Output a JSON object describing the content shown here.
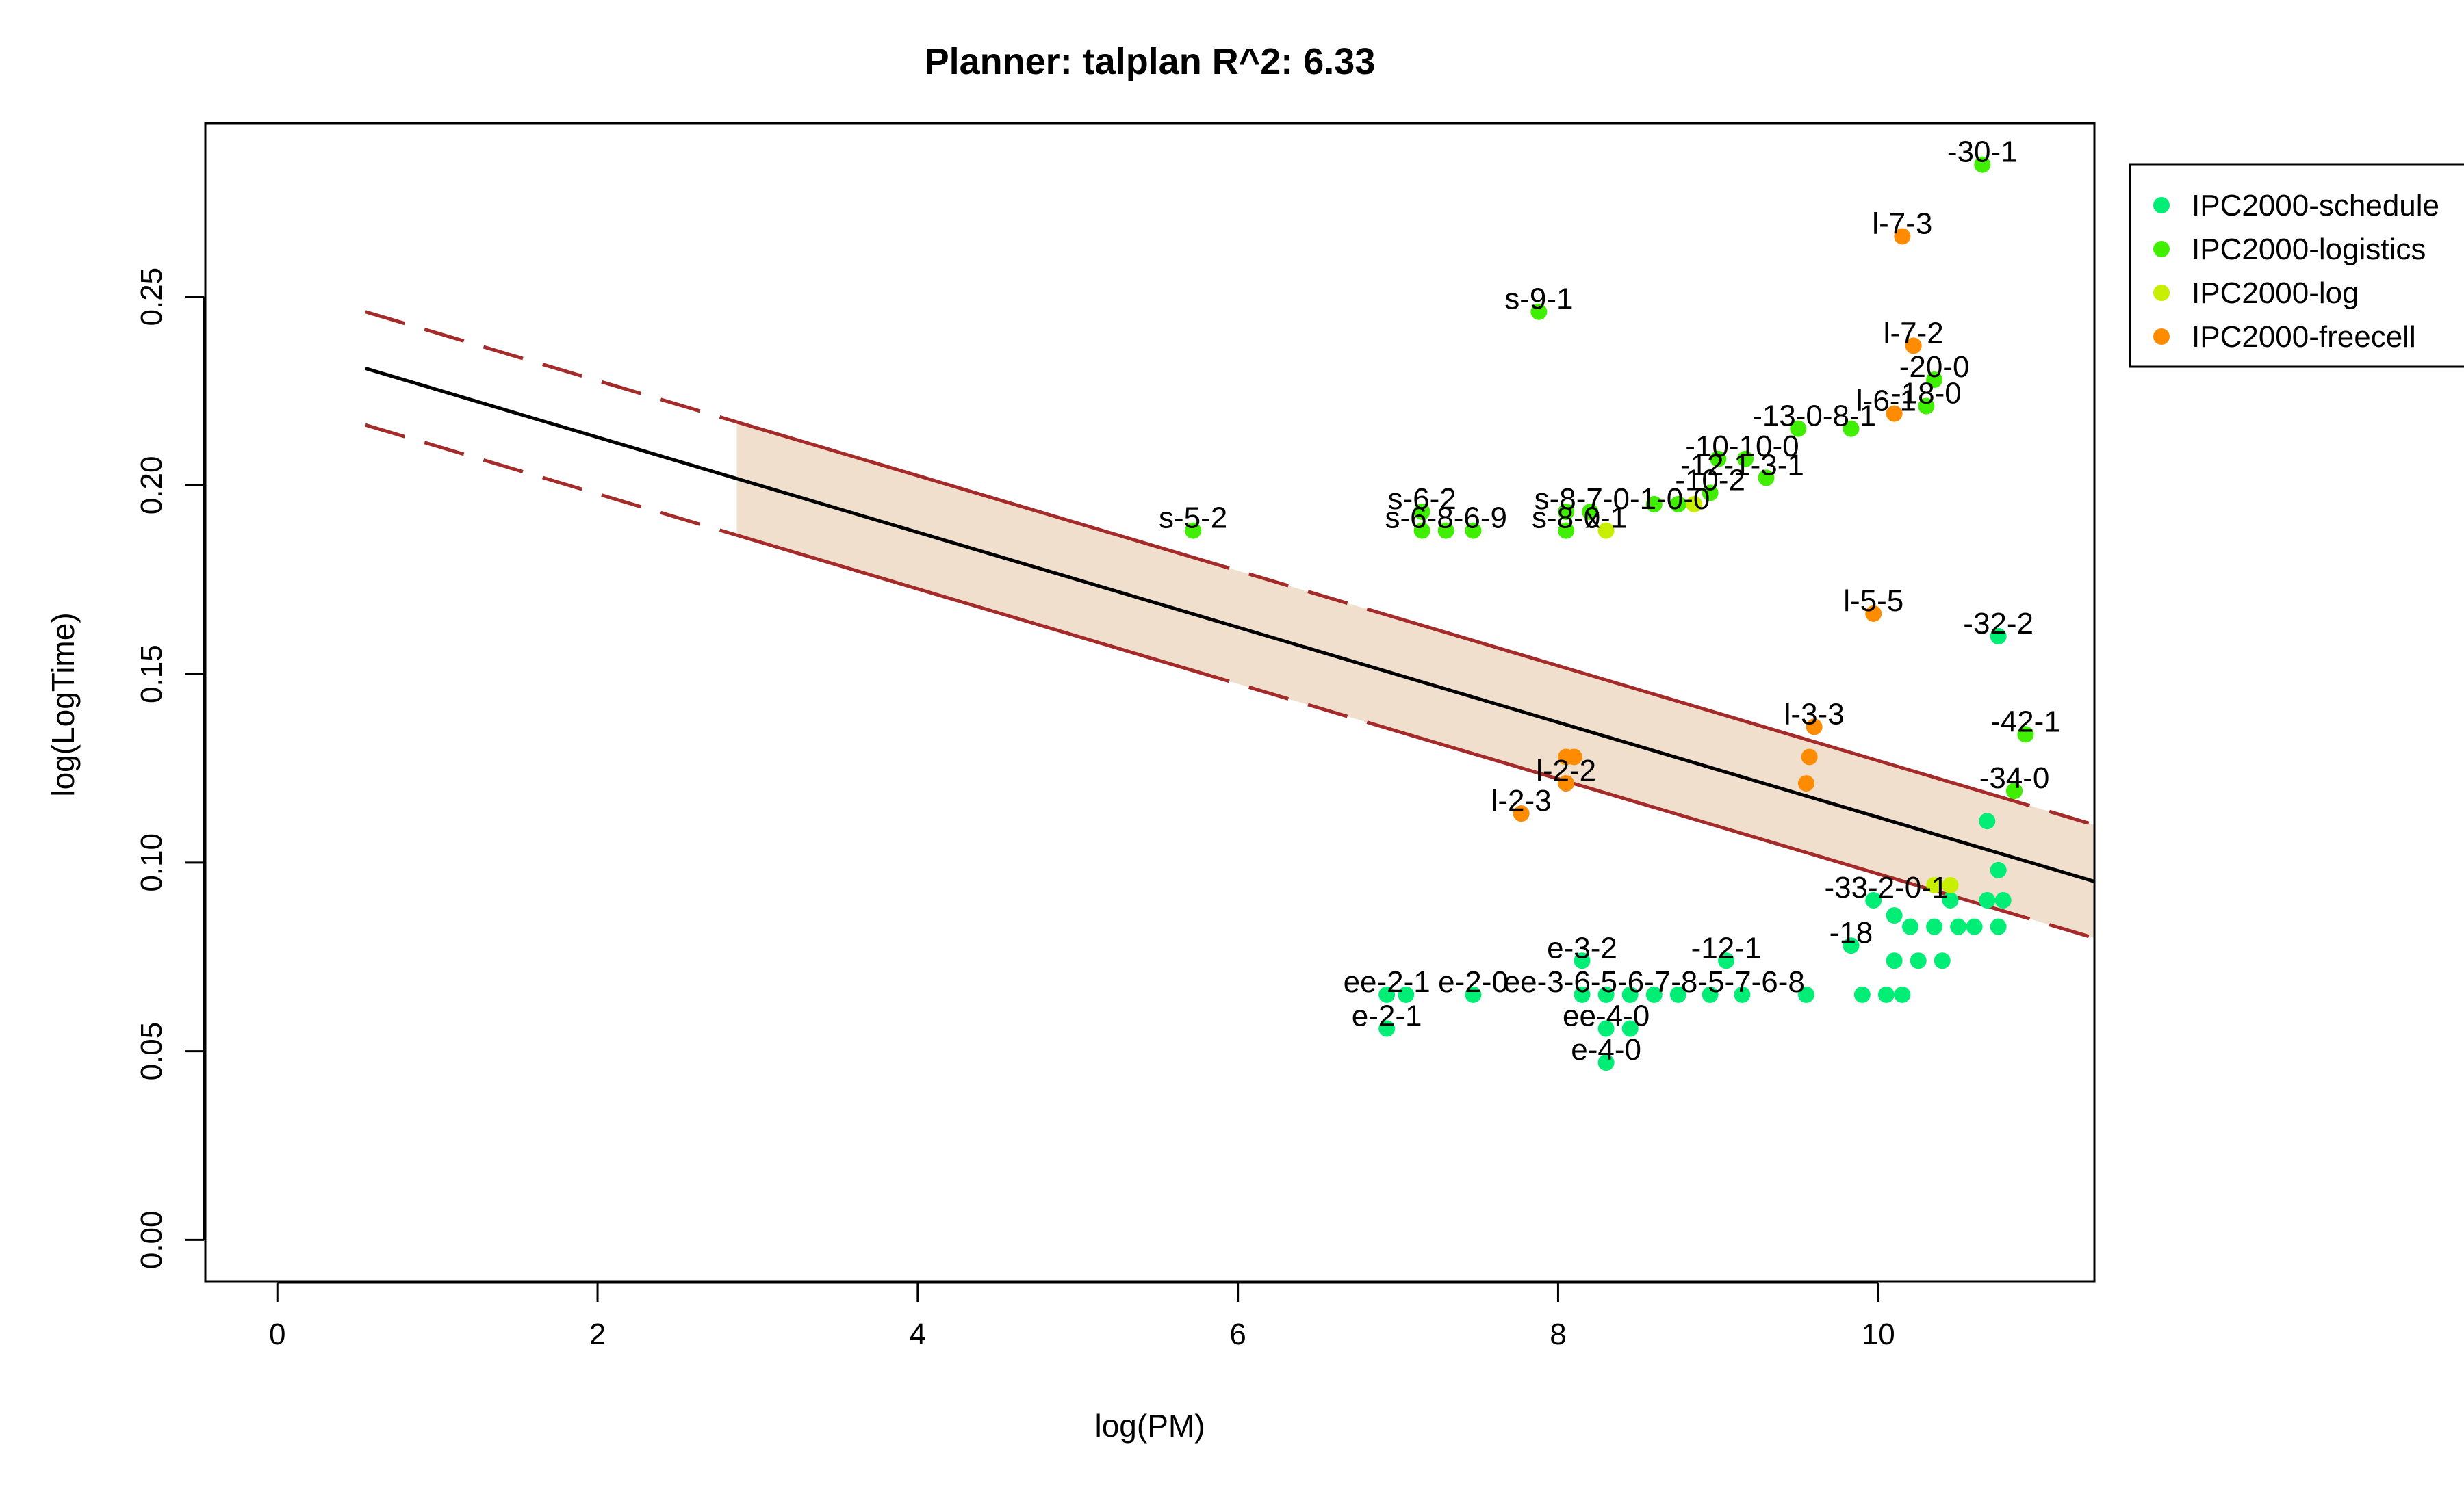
{
  "chart_data": {
    "type": "scatter",
    "title": "Planner: talplan R^2: 6.33",
    "xlabel": "log(PM)",
    "ylabel": "log(LogTime)",
    "xlim": [
      -0.45,
      11.35
    ],
    "ylim": [
      -0.011,
      0.296
    ],
    "xticks": [
      0,
      2,
      4,
      6,
      8,
      10
    ],
    "yticks": [
      0.0,
      0.05,
      0.1,
      0.15,
      0.2,
      0.25
    ],
    "xtick_labels": [
      "0",
      "2",
      "4",
      "6",
      "8",
      "10"
    ],
    "ytick_labels": [
      "0.00",
      "0.05",
      "0.10",
      "0.15",
      "0.20",
      "0.25"
    ],
    "grid": false,
    "legend_position": "top-right, outside plot",
    "fit": {
      "line": {
        "from": [
          0.55,
          0.231
        ],
        "to": [
          11.35,
          0.095
        ]
      },
      "band_upper": {
        "from": [
          0.55,
          0.246
        ],
        "to": [
          11.35,
          0.11
        ]
      },
      "band_lower": {
        "from": [
          0.55,
          0.216
        ],
        "to": [
          11.35,
          0.08
        ]
      },
      "band_shade_start_x": 2.87,
      "dashed_sections_x": [
        [
          0.55,
          2.87
        ],
        [
          5.7,
          7.0
        ],
        [
          10.7,
          11.35
        ]
      ],
      "line_color": "#000000",
      "band_color": "#a52a2a",
      "shade_color": "#f0dfcc"
    },
    "series": [
      {
        "name": "IPC2000-schedule",
        "color": "#00ee76",
        "points": [
          [
            6.93,
            0.056
          ],
          [
            6.93,
            0.065
          ],
          [
            7.05,
            0.065
          ],
          [
            7.47,
            0.065
          ],
          [
            8.15,
            0.074
          ],
          [
            8.15,
            0.065
          ],
          [
            8.3,
            0.065
          ],
          [
            8.45,
            0.065
          ],
          [
            8.6,
            0.065
          ],
          [
            8.75,
            0.065
          ],
          [
            8.95,
            0.065
          ],
          [
            9.15,
            0.065
          ],
          [
            9.55,
            0.065
          ],
          [
            9.9,
            0.065
          ],
          [
            10.05,
            0.065
          ],
          [
            10.15,
            0.065
          ],
          [
            8.3,
            0.047
          ],
          [
            8.3,
            0.056
          ],
          [
            8.45,
            0.056
          ],
          [
            9.05,
            0.074
          ],
          [
            9.83,
            0.078
          ],
          [
            10.1,
            0.074
          ],
          [
            10.25,
            0.074
          ],
          [
            10.4,
            0.074
          ],
          [
            9.97,
            0.09
          ],
          [
            10.1,
            0.086
          ],
          [
            10.2,
            0.083
          ],
          [
            10.35,
            0.083
          ],
          [
            10.5,
            0.083
          ],
          [
            10.6,
            0.083
          ],
          [
            10.75,
            0.083
          ],
          [
            10.45,
            0.09
          ],
          [
            10.68,
            0.09
          ],
          [
            10.78,
            0.09
          ],
          [
            10.75,
            0.098
          ],
          [
            10.68,
            0.111
          ],
          [
            10.85,
            0.119
          ],
          [
            10.75,
            0.16
          ]
        ],
        "labels": [
          {
            "text": "e-2-1",
            "at": [
              6.93,
              0.056
            ]
          },
          {
            "text": "ee-2-1",
            "at": [
              6.93,
              0.065
            ]
          },
          {
            "text": "e-2-0",
            "at": [
              7.47,
              0.065
            ]
          },
          {
            "text": "e-3-2",
            "at": [
              8.15,
              0.074
            ]
          },
          {
            "text": "ee-3-6-5-6-7-8-5-7-6-8",
            "at": [
              8.6,
              0.065
            ]
          },
          {
            "text": "ee-4-0",
            "at": [
              8.3,
              0.056
            ]
          },
          {
            "text": "e-4-0",
            "at": [
              8.3,
              0.047
            ]
          },
          {
            "text": "-12-1",
            "at": [
              9.05,
              0.074
            ]
          },
          {
            "text": "-18",
            "at": [
              9.83,
              0.078
            ]
          },
          {
            "text": "-33-2-0-1",
            "at": [
              10.05,
              0.09
            ]
          },
          {
            "text": "-34-0",
            "at": [
              10.85,
              0.119
            ]
          },
          {
            "text": "-32-2",
            "at": [
              10.75,
              0.16
            ]
          }
        ]
      },
      {
        "name": "IPC2000-logistics",
        "color": "#3fee00",
        "points": [
          [
            5.72,
            0.188
          ],
          [
            7.15,
            0.193
          ],
          [
            7.15,
            0.188
          ],
          [
            7.3,
            0.188
          ],
          [
            7.47,
            0.188
          ],
          [
            7.88,
            0.246
          ],
          [
            8.05,
            0.188
          ],
          [
            8.05,
            0.193
          ],
          [
            8.2,
            0.193
          ],
          [
            8.6,
            0.195
          ],
          [
            8.75,
            0.195
          ],
          [
            8.95,
            0.198
          ],
          [
            9.0,
            0.207
          ],
          [
            9.17,
            0.207
          ],
          [
            9.3,
            0.202
          ],
          [
            9.5,
            0.215
          ],
          [
            9.83,
            0.215
          ],
          [
            10.3,
            0.221
          ],
          [
            10.35,
            0.228
          ],
          [
            10.65,
            0.285
          ],
          [
            10.92,
            0.134
          ],
          [
            10.85,
            0.119
          ]
        ],
        "labels": [
          {
            "text": "s-5-2",
            "at": [
              5.72,
              0.188
            ]
          },
          {
            "text": "s-6-2",
            "at": [
              7.15,
              0.193
            ]
          },
          {
            "text": "s-6-8-6-9",
            "at": [
              7.3,
              0.188
            ]
          },
          {
            "text": "s-9-1",
            "at": [
              7.88,
              0.246
            ]
          },
          {
            "text": "s-8-0",
            "at": [
              8.05,
              0.188
            ]
          },
          {
            "text": "s-8-7-0-1-0-0",
            "at": [
              8.4,
              0.193
            ]
          },
          {
            "text": "-10-2",
            "at": [
              8.95,
              0.198
            ]
          },
          {
            "text": "-12-1-3-1",
            "at": [
              9.15,
              0.202
            ]
          },
          {
            "text": "-10-10-0",
            "at": [
              9.15,
              0.207
            ]
          },
          {
            "text": "-13-0-8-1",
            "at": [
              9.6,
              0.215
            ]
          },
          {
            "text": "-18-0",
            "at": [
              10.3,
              0.221
            ]
          },
          {
            "text": "-20-0",
            "at": [
              10.35,
              0.228
            ]
          },
          {
            "text": "-30-1",
            "at": [
              10.65,
              0.285
            ]
          },
          {
            "text": "-42-1",
            "at": [
              10.92,
              0.134
            ]
          }
        ]
      },
      {
        "name": "IPC2000-log",
        "color": "#c8ee00",
        "points": [
          [
            8.3,
            0.188
          ],
          [
            8.85,
            0.195
          ],
          [
            10.35,
            0.094
          ],
          [
            10.45,
            0.094
          ]
        ],
        "labels": [
          {
            "text": "x-1",
            "at": [
              8.3,
              0.188
            ]
          }
        ]
      },
      {
        "name": "IPC2000-freecell",
        "color": "#ff8c00",
        "points": [
          [
            7.77,
            0.113
          ],
          [
            8.05,
            0.121
          ],
          [
            8.05,
            0.128
          ],
          [
            8.1,
            0.128
          ],
          [
            9.55,
            0.121
          ],
          [
            9.57,
            0.128
          ],
          [
            9.6,
            0.136
          ],
          [
            9.97,
            0.166
          ],
          [
            10.1,
            0.219
          ],
          [
            10.15,
            0.266
          ],
          [
            10.22,
            0.237
          ]
        ],
        "labels": [
          {
            "text": "l-2-3",
            "at": [
              7.77,
              0.113
            ]
          },
          {
            "text": "l-2-2",
            "at": [
              8.05,
              0.121
            ]
          },
          {
            "text": "l-3-3",
            "at": [
              9.6,
              0.136
            ]
          },
          {
            "text": "l-5-5",
            "at": [
              9.97,
              0.166
            ]
          },
          {
            "text": "l-6-1",
            "at": [
              10.05,
              0.219
            ]
          },
          {
            "text": "l-7-2",
            "at": [
              10.22,
              0.237
            ]
          },
          {
            "text": "l-7-3",
            "at": [
              10.15,
              0.266
            ]
          }
        ]
      }
    ]
  }
}
